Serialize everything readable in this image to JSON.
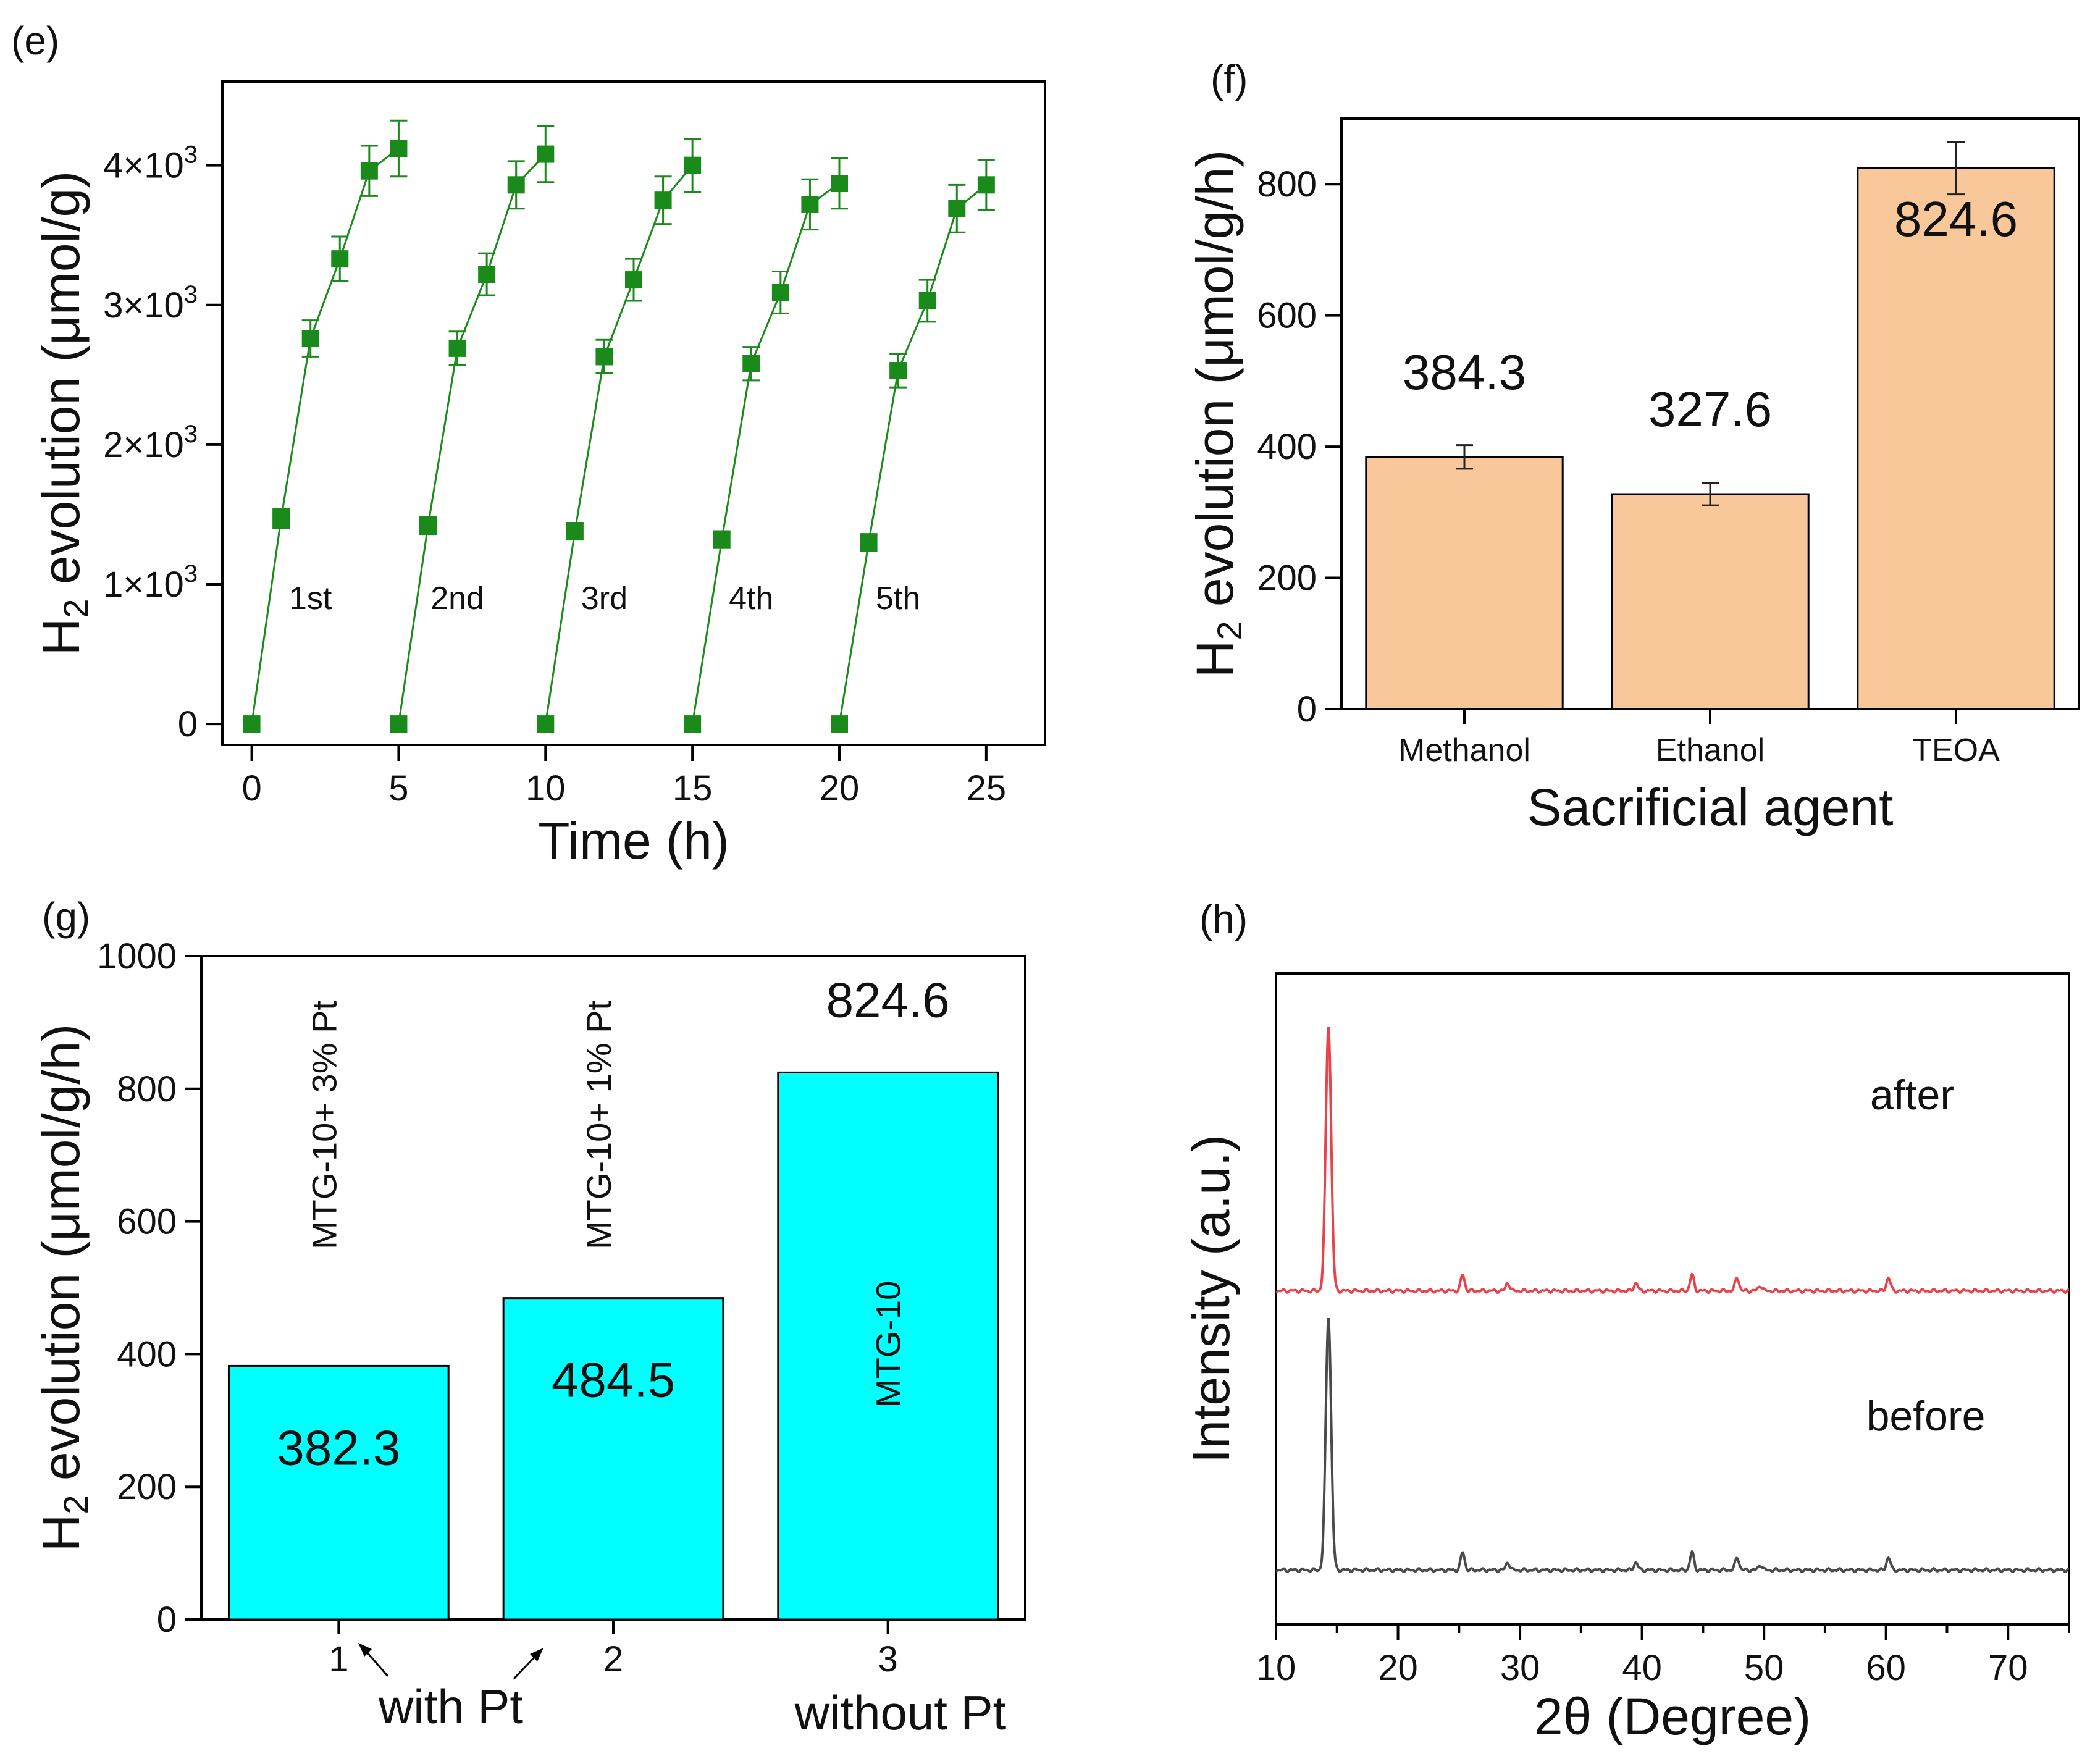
{
  "colors": {
    "green": "#1a8a1a",
    "orange": "#f8c89a",
    "cyan": "#00ffff",
    "red": "#e8434a",
    "dark": "#4a4a4a"
  },
  "chart_data": [
    {
      "panel": "(e)",
      "type": "line",
      "xlabel": "Time (h)",
      "ylabel_main": "H",
      "ylabel_sub": "2",
      "ylabel_rest": " evolution (μmol/g)",
      "xlim": [
        -1,
        27
      ],
      "ylim": [
        -150,
        4600
      ],
      "xticks": [
        0,
        5,
        10,
        15,
        20,
        25
      ],
      "xtick_labels": [
        "0",
        "5",
        "10",
        "15",
        "20",
        "25"
      ],
      "yticks": [
        0,
        1000,
        2000,
        3000,
        4000
      ],
      "ytick_base": [
        "0",
        "1×10",
        "2×10",
        "3×10",
        "4×10"
      ],
      "ytick_exp": [
        "",
        "3",
        "3",
        "3",
        "3"
      ],
      "cycle_labels": [
        "1st",
        "2nd",
        "3rd",
        "4th",
        "5th"
      ],
      "series": [
        {
          "name": "1st",
          "x": [
            0,
            1,
            2,
            3,
            4,
            5
          ],
          "y": [
            0,
            1470,
            2760,
            3330,
            3960,
            4120
          ],
          "err": [
            0,
            70,
            130,
            160,
            180,
            200
          ]
        },
        {
          "name": "2nd",
          "x": [
            5,
            6,
            7,
            8,
            9,
            10
          ],
          "y": [
            0,
            1420,
            2690,
            3220,
            3860,
            4080
          ],
          "err": [
            0,
            60,
            120,
            150,
            170,
            200
          ]
        },
        {
          "name": "3rd",
          "x": [
            10,
            11,
            12,
            13,
            14,
            15
          ],
          "y": [
            0,
            1380,
            2630,
            3180,
            3750,
            4000
          ],
          "err": [
            0,
            60,
            120,
            150,
            170,
            190
          ]
        },
        {
          "name": "4th",
          "x": [
            15,
            16,
            17,
            18,
            19,
            20
          ],
          "y": [
            0,
            1320,
            2580,
            3090,
            3720,
            3870
          ],
          "err": [
            0,
            60,
            120,
            150,
            180,
            180
          ]
        },
        {
          "name": "5th",
          "x": [
            20,
            21,
            22,
            23,
            24,
            25
          ],
          "y": [
            0,
            1300,
            2530,
            3030,
            3690,
            3860
          ],
          "err": [
            0,
            60,
            120,
            150,
            170,
            180
          ]
        }
      ]
    },
    {
      "panel": "(f)",
      "type": "bar",
      "xlabel": "Sacrificial agent",
      "ylabel_main": "H",
      "ylabel_sub": "2",
      "ylabel_rest": " evolution (μmol/g/h)",
      "categories": [
        "Methanol",
        "Ethanol",
        "TEOA"
      ],
      "values": [
        384.3,
        327.6,
        824.6
      ],
      "value_labels": [
        "384.3",
        "327.6",
        "824.6"
      ],
      "errors": [
        18,
        17,
        40
      ],
      "ylim": [
        0,
        900
      ],
      "yticks": [
        0,
        200,
        400,
        600,
        800
      ],
      "ytick_labels": [
        "0",
        "200",
        "400",
        "600",
        "800"
      ]
    },
    {
      "panel": "(g)",
      "type": "bar",
      "ylabel_main": "H",
      "ylabel_sub": "2",
      "ylabel_rest": " evolution (μmol/g/h)",
      "categories": [
        "1",
        "2",
        "3"
      ],
      "values": [
        382.3,
        484.5,
        824.6
      ],
      "value_labels": [
        "382.3",
        "484.5",
        "824.6"
      ],
      "sample_names": [
        "MTG-10+ 3% Pt",
        "MTG-10+ 1% Pt",
        "MTG-10"
      ],
      "group_labels": [
        "with Pt",
        "without Pt"
      ],
      "ylim": [
        0,
        1000
      ],
      "yticks": [
        0,
        200,
        400,
        600,
        800,
        1000
      ],
      "ytick_labels": [
        "0",
        "200",
        "400",
        "600",
        "800",
        "1000"
      ]
    },
    {
      "panel": "(h)",
      "type": "line",
      "xlabel": "2θ (Degree)",
      "ylabel": "Intensity (a.u.)",
      "xlim": [
        10,
        75
      ],
      "xticks": [
        10,
        20,
        30,
        40,
        50,
        60,
        70
      ],
      "xtick_labels": [
        "10",
        "20",
        "30",
        "40",
        "50",
        "60",
        "70"
      ],
      "peaks_2theta": [
        14.3,
        25.3,
        29.0,
        39.5,
        44.1,
        47.8,
        49.7,
        60.2
      ],
      "series": [
        {
          "name": "after",
          "relative_heights": [
            1.0,
            0.06,
            0.03,
            0.03,
            0.06,
            0.05,
            0.02,
            0.05
          ]
        },
        {
          "name": "before",
          "relative_heights": [
            1.0,
            0.07,
            0.03,
            0.03,
            0.07,
            0.05,
            0.02,
            0.05
          ]
        }
      ]
    }
  ]
}
